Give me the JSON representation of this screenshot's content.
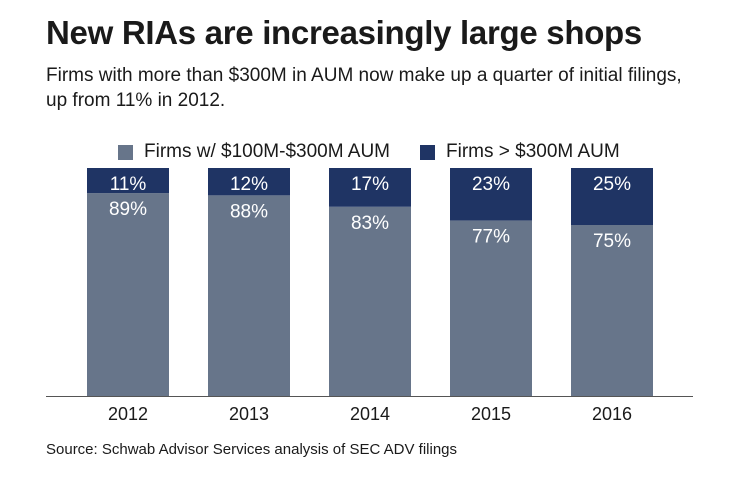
{
  "title": "New RIAs are increasingly large shops",
  "subtitle": "Firms with more than $300M in AUM now make up a quarter of initial filings, up from 11% in 2012.",
  "source": "Source: Schwab Advisor Services analysis of SEC ADV filings",
  "colors": {
    "small_firms": "#67758a",
    "large_firms": "#1f3464",
    "axis": "#555555",
    "bar_label": "#ffffff"
  },
  "chart_data": {
    "type": "bar",
    "stacked": true,
    "percent_stacked": true,
    "categories": [
      "2012",
      "2013",
      "2014",
      "2015",
      "2016"
    ],
    "series": [
      {
        "name": "Firms w/ $100M-$300M AUM",
        "values": [
          89,
          88,
          83,
          77,
          75
        ],
        "labels": [
          "89%",
          "88%",
          "83%",
          "77%",
          "75%"
        ]
      },
      {
        "name": "Firms > $300M AUM",
        "values": [
          11,
          12,
          17,
          23,
          25
        ],
        "labels": [
          "11%",
          "12%",
          "17%",
          "23%",
          "25%"
        ]
      }
    ],
    "ylim": [
      0,
      100
    ],
    "grid": false,
    "legend_position": "top",
    "data_labels": "inside-top"
  }
}
